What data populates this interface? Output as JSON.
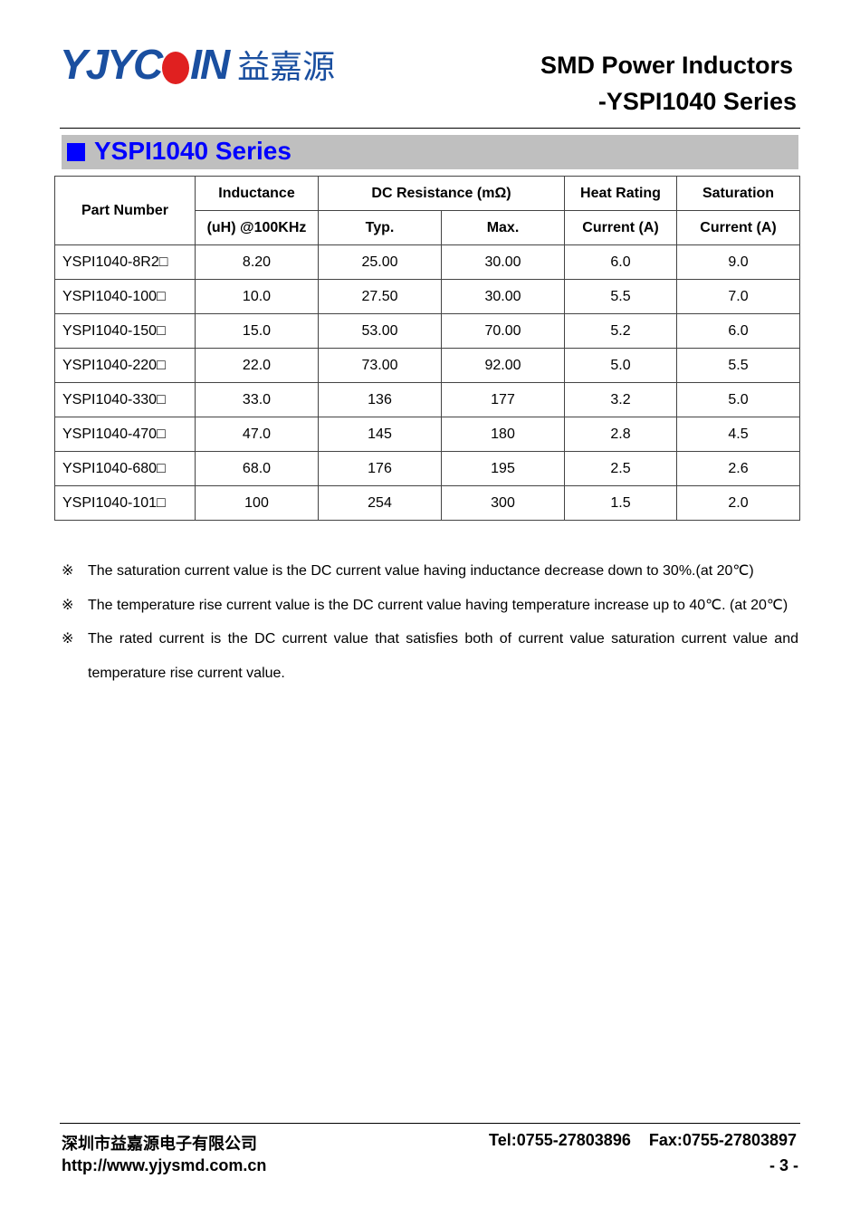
{
  "header": {
    "logo_text": "YJYCOIN",
    "logo_cn": "益嘉源",
    "title_line1": "SMD Power Inductors",
    "title_line2": "-YSPI1040 Series"
  },
  "section_title": "YSPI1040 Series",
  "table": {
    "headers": {
      "part_number": "Part Number",
      "inductance_1": "Inductance",
      "inductance_2": "(uH) @100KHz",
      "dcr": "DC Resistance (mΩ)",
      "typ": "Typ.",
      "max": "Max.",
      "heat_1": "Heat Rating",
      "heat_2": "Current (A)",
      "sat_1": "Saturation",
      "sat_2": "Current (A)"
    },
    "rows": [
      [
        "YSPI1040-8R2□",
        "8.20",
        "25.00",
        "30.00",
        "6.0",
        "9.0"
      ],
      [
        "YSPI1040-100□",
        "10.0",
        "27.50",
        "30.00",
        "5.5",
        "7.0"
      ],
      [
        "YSPI1040-150□",
        "15.0",
        "53.00",
        "70.00",
        "5.2",
        "6.0"
      ],
      [
        "YSPI1040-220□",
        "22.0",
        "73.00",
        "92.00",
        "5.0",
        "5.5"
      ],
      [
        "YSPI1040-330□",
        "33.0",
        "136",
        "177",
        "3.2",
        "5.0"
      ],
      [
        "YSPI1040-470□",
        "47.0",
        "145",
        "180",
        "2.8",
        "4.5"
      ],
      [
        "YSPI1040-680□",
        "68.0",
        "176",
        "195",
        "2.5",
        "2.6"
      ],
      [
        "YSPI1040-101□",
        "100",
        "254",
        "300",
        "1.5",
        "2.0"
      ]
    ]
  },
  "notes": {
    "marker": "※",
    "items": [
      "The saturation current value is the DC current value having inductance decrease down to 30%.(at 20℃)",
      "The temperature rise current value is the DC current value having temperature increase up to 40℃. (at 20℃)",
      "The rated current is the DC current value that satisfies both of current value saturation current value and temperature rise current value."
    ]
  },
  "footer": {
    "company": "深圳市益嘉源电子有限公司",
    "website": "http://www.yjysmd.com.cn",
    "tel": "Tel:0755-27803896",
    "fax": "Fax:0755-27803897",
    "page": "- 3 -"
  }
}
